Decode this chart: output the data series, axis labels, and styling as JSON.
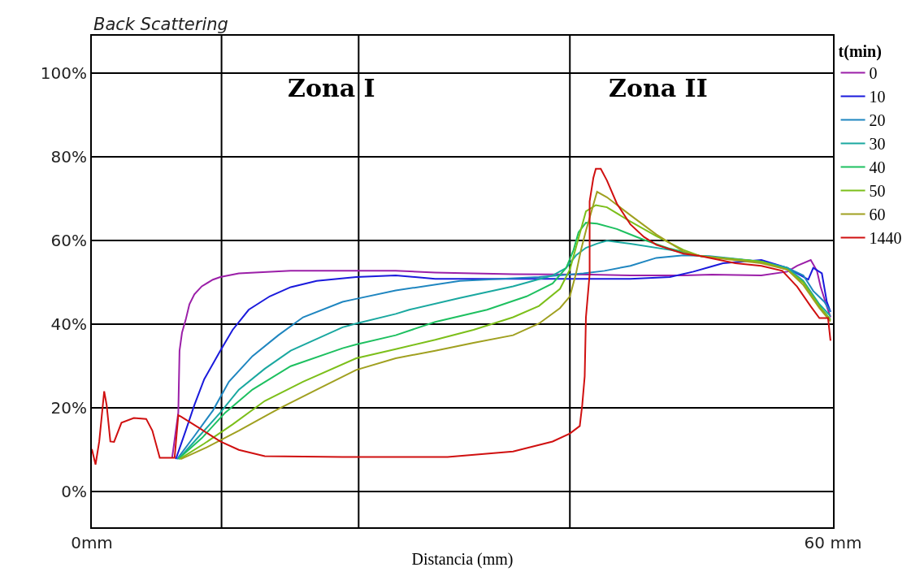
{
  "chart_data": {
    "type": "line",
    "ylabel": "Back Scattering",
    "xlabel": "Distancia (mm)",
    "legend_title": "t(min)",
    "legend": "right",
    "grid": "y",
    "marker": "none",
    "line_style": "solid",
    "xlim": [
      0,
      60
    ],
    "xticks": [
      {
        "value": 0,
        "label": "0mm"
      },
      {
        "value": 60,
        "label": "60 mm"
      }
    ],
    "ylim": [
      -8.5,
      109
    ],
    "yticks": [
      {
        "value": 0,
        "label": "0%"
      },
      {
        "value": 20,
        "label": "20%"
      },
      {
        "value": 40,
        "label": "40%"
      },
      {
        "value": 60,
        "label": "60%"
      },
      {
        "value": 80,
        "label": "80%"
      },
      {
        "value": 100,
        "label": "100%"
      }
    ],
    "ref_lines": [
      {
        "axis": "x",
        "value": 10.5,
        "color": "#000000"
      },
      {
        "axis": "x",
        "value": 21.6,
        "color": "#000000"
      },
      {
        "axis": "x",
        "value": 38.7,
        "color": "#000000"
      }
    ],
    "annotations": [
      "Zona I",
      "Zona II"
    ],
    "series": [
      {
        "name": "0",
        "color": "#9b1fa8",
        "x": [
          6.5,
          7.0,
          7.1,
          7.3,
          7.6,
          7.9,
          8.3,
          8.9,
          9.8,
          10.4,
          11.9,
          16.1,
          20.3,
          24.6,
          27.8,
          30.9,
          34.1,
          40.4,
          43.6,
          47.9,
          50.2,
          54.2,
          56.3,
          57.1,
          58.2,
          58.7,
          59.0,
          59.5,
          59.8
        ],
        "values": [
          8.1,
          18.9,
          33.7,
          38.0,
          41.1,
          44.8,
          47.2,
          49.1,
          50.7,
          51.3,
          52.2,
          52.8,
          52.8,
          52.8,
          52.4,
          52.2,
          52.0,
          51.9,
          51.7,
          51.7,
          51.9,
          51.7,
          52.6,
          54.0,
          55.4,
          52.8,
          49.0,
          44.3,
          41.7
        ]
      },
      {
        "name": "10",
        "color": "#1a1adc",
        "x": [
          6.8,
          7.6,
          8.3,
          9.1,
          10.4,
          11.4,
          12.7,
          14.4,
          16.1,
          18.2,
          21.4,
          24.6,
          27.8,
          38.4,
          43.6,
          46.8,
          48.7,
          50.0,
          51.1,
          54.2,
          56.3,
          58.0,
          58.4,
          59.1,
          59.5,
          59.8
        ],
        "values": [
          7.8,
          14.6,
          20.7,
          26.9,
          33.7,
          38.7,
          43.5,
          46.7,
          48.9,
          50.4,
          51.3,
          51.7,
          50.9,
          50.9,
          50.9,
          51.3,
          52.6,
          53.7,
          54.6,
          55.4,
          53.5,
          50.7,
          53.5,
          52.2,
          45.4,
          43.0
        ]
      },
      {
        "name": "20",
        "color": "#1f86c0",
        "x": [
          6.9,
          8.3,
          9.8,
          11.1,
          13.0,
          15.1,
          17.1,
          20.3,
          21.4,
          24.6,
          29.8,
          36.2,
          39.8,
          41.5,
          43.6,
          45.7,
          47.9,
          50.0,
          54.2,
          56.3,
          57.6,
          58.4,
          59.3,
          59.8
        ],
        "values": [
          7.8,
          13.3,
          19.4,
          26.3,
          32.4,
          37.4,
          41.7,
          45.4,
          46.1,
          48.1,
          50.4,
          51.3,
          52.2,
          52.8,
          54.0,
          55.9,
          56.5,
          56.3,
          55.0,
          53.5,
          51.7,
          48.0,
          45.4,
          43.0
        ]
      },
      {
        "name": "30",
        "color": "#1aa8a0",
        "x": [
          7.0,
          8.7,
          10.4,
          11.9,
          14.0,
          16.1,
          20.3,
          21.4,
          24.6,
          25.7,
          29.8,
          34.1,
          37.3,
          38.4,
          39.2,
          40.0,
          40.9,
          41.7,
          43.6,
          46.8,
          49.3,
          54.2,
          56.3,
          57.6,
          58.9,
          59.8
        ],
        "values": [
          7.8,
          13.3,
          18.9,
          24.4,
          29.4,
          33.7,
          39.3,
          40.2,
          42.5,
          43.5,
          46.3,
          49.1,
          51.7,
          53.5,
          56.5,
          58.3,
          59.3,
          60.0,
          59.3,
          57.8,
          56.3,
          55.0,
          53.5,
          50.4,
          44.8,
          42.0
        ]
      },
      {
        "name": "40",
        "color": "#1ec060",
        "x": [
          7.0,
          8.9,
          10.8,
          13.0,
          16.1,
          20.3,
          21.4,
          24.6,
          27.8,
          32.0,
          35.2,
          37.3,
          38.4,
          39.0,
          39.4,
          40.0,
          40.9,
          42.5,
          44.7,
          46.8,
          49.3,
          54.2,
          56.3,
          57.6,
          58.9,
          59.8
        ],
        "values": [
          7.8,
          12.8,
          18.9,
          24.4,
          30.0,
          34.3,
          35.2,
          37.4,
          40.6,
          43.5,
          46.7,
          49.8,
          53.5,
          57.8,
          62.0,
          64.3,
          64.1,
          62.8,
          60.2,
          58.1,
          56.3,
          55.0,
          53.1,
          50.0,
          44.3,
          41.1
        ]
      },
      {
        "name": "50",
        "color": "#7cbf1a",
        "x": [
          7.1,
          9.1,
          11.4,
          14.0,
          17.1,
          21.4,
          24.6,
          27.8,
          30.9,
          34.1,
          36.2,
          37.9,
          38.7,
          39.4,
          40.0,
          40.8,
          41.7,
          43.6,
          45.7,
          47.9,
          49.3,
          54.2,
          56.3,
          57.6,
          58.9,
          59.8
        ],
        "values": [
          7.8,
          11.5,
          16.1,
          21.7,
          26.3,
          31.9,
          34.1,
          36.3,
          38.7,
          41.7,
          44.4,
          48.5,
          53.1,
          60.6,
          67.0,
          68.5,
          68.0,
          64.6,
          61.1,
          57.8,
          56.3,
          55.0,
          53.1,
          50.0,
          44.3,
          41.1
        ]
      },
      {
        "name": "60",
        "color": "#a0a020",
        "x": [
          7.2,
          9.3,
          11.9,
          15.1,
          18.2,
          21.4,
          24.6,
          27.8,
          30.9,
          34.1,
          36.2,
          37.9,
          38.7,
          39.2,
          39.6,
          40.0,
          40.9,
          41.7,
          43.6,
          45.7,
          47.9,
          49.3,
          54.2,
          56.3,
          57.6,
          58.9,
          59.8
        ],
        "values": [
          7.8,
          10.6,
          14.6,
          19.8,
          24.4,
          29.1,
          31.9,
          33.7,
          35.6,
          37.4,
          40.2,
          43.9,
          46.7,
          52.2,
          57.8,
          62.4,
          71.7,
          70.4,
          66.1,
          61.5,
          57.4,
          56.3,
          54.6,
          53.1,
          49.4,
          43.9,
          40.7
        ]
      },
      {
        "name": "1440",
        "color": "#d01010",
        "x": [
          0,
          0.3,
          0.6,
          1.0,
          1.2,
          1.5,
          1.8,
          2.4,
          3.4,
          4.4,
          4.9,
          5.5,
          6.7,
          7.0,
          7.2,
          8.7,
          10.4,
          11.9,
          14.0,
          20.3,
          28.8,
          34.1,
          37.3,
          38.7,
          39.5,
          39.7,
          39.9,
          40.0,
          40.3,
          40.3,
          40.6,
          40.8,
          41.2,
          41.7,
          42.5,
          43.6,
          44.7,
          45.7,
          47.9,
          49.3,
          52.1,
          54.2,
          55.9,
          57.1,
          58.2,
          58.9,
          59.6,
          59.8
        ],
        "values": [
          10.2,
          6.5,
          12.0,
          24.0,
          20.7,
          12.0,
          11.9,
          16.5,
          17.6,
          17.4,
          14.6,
          8.1,
          8.1,
          18.3,
          18.0,
          15.2,
          12.0,
          10.0,
          8.5,
          8.3,
          8.3,
          9.6,
          12.0,
          13.9,
          15.7,
          20.7,
          27.6,
          41.7,
          52.0,
          69.4,
          75.0,
          77.2,
          77.2,
          74.4,
          68.9,
          63.9,
          60.9,
          59.0,
          56.9,
          56.3,
          54.6,
          54.0,
          52.8,
          49.0,
          44.3,
          41.5,
          41.5,
          36.1
        ]
      }
    ]
  }
}
